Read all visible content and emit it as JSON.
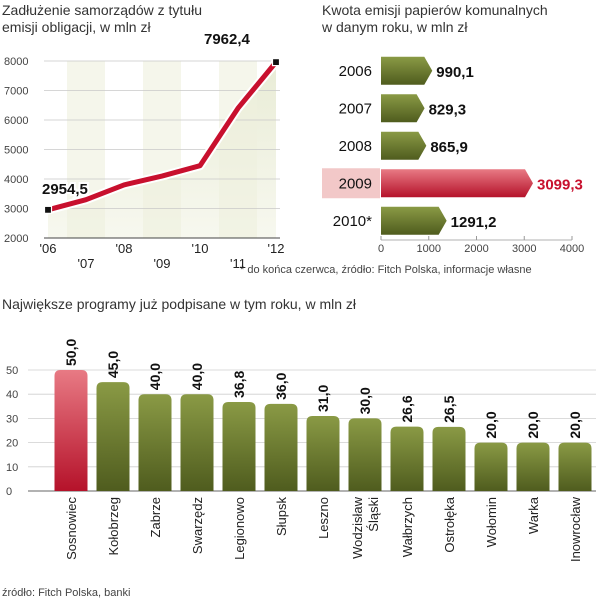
{
  "line_panel": {
    "title_line1": "Zadłużenie samorządów z tytułu",
    "title_line2": "emisji obligacji, w mln zł"
  },
  "bar_panel": {
    "title_line1": "Kwota emisji papierów komunalnych",
    "title_line2": "w danym roku, w mln zł",
    "footnote": "* do końca czerwca, źródło: Fitch Polska, informacje własne"
  },
  "column_panel": {
    "title": "Największe programy już podpisane w tym roku, w mln zł",
    "source": "źródło: Fitch Polska, banki"
  },
  "colors": {
    "olive": "#6b7a2e",
    "red": "#c8102e",
    "pink": "#f2c8c8",
    "line_red": "#c8102e"
  },
  "chart_data": [
    {
      "type": "line",
      "x": [
        2006,
        2007,
        2008,
        2009,
        2010,
        2011,
        2012
      ],
      "x_tick_labels_top": [
        "'06",
        "'08",
        "'10",
        "'12"
      ],
      "x_tick_labels_bottom": [
        "'07",
        "'09",
        "'11"
      ],
      "values": [
        2954.5,
        3300,
        3800,
        4100,
        4450,
        6400,
        7962.4
      ],
      "data_labels": [
        {
          "x": 2006,
          "text": "2954,5"
        },
        {
          "x": 2012,
          "text": "7962,4"
        }
      ],
      "ylim": [
        2000,
        8000
      ],
      "y_ticks": [
        2000,
        3000,
        4000,
        5000,
        6000,
        7000,
        8000
      ],
      "grid": true
    },
    {
      "type": "bar",
      "orientation": "horizontal",
      "categories": [
        "2006",
        "2007",
        "2008",
        "2009",
        "2010*"
      ],
      "values": [
        990.1,
        829.3,
        865.9,
        3099.3,
        1291.2
      ],
      "value_labels": [
        "990,1",
        "829,3",
        "865,9",
        "3099,3",
        "1291,2"
      ],
      "highlight_index": 3,
      "xlim": [
        0,
        4000
      ],
      "x_ticks": [
        0,
        1000,
        2000,
        3000,
        4000
      ]
    },
    {
      "type": "bar",
      "categories": [
        "Sosnowiec",
        "Kołobrzeg",
        "Zabrze",
        "Swarzędz",
        "Legionowo",
        "Słupsk",
        "Leszno",
        "Wodzisław Śląski",
        "Wałbrzych",
        "Ostrołęka",
        "Wołomin",
        "Warka",
        "Inowrocław"
      ],
      "values": [
        50.0,
        45.0,
        40.0,
        40.0,
        36.8,
        36.0,
        31.0,
        30.0,
        26.6,
        26.5,
        20.0,
        20.0,
        20.0
      ],
      "value_labels": [
        "50,0",
        "45,0",
        "40,0",
        "40,0",
        "36,8",
        "36,0",
        "31,0",
        "30,0",
        "26,6",
        "26,5",
        "20,0",
        "20,0",
        "20,0"
      ],
      "highlight_index": 0,
      "ylim": [
        0,
        50
      ],
      "y_ticks": [
        0,
        10,
        20,
        30,
        40,
        50
      ],
      "grid": true
    }
  ]
}
